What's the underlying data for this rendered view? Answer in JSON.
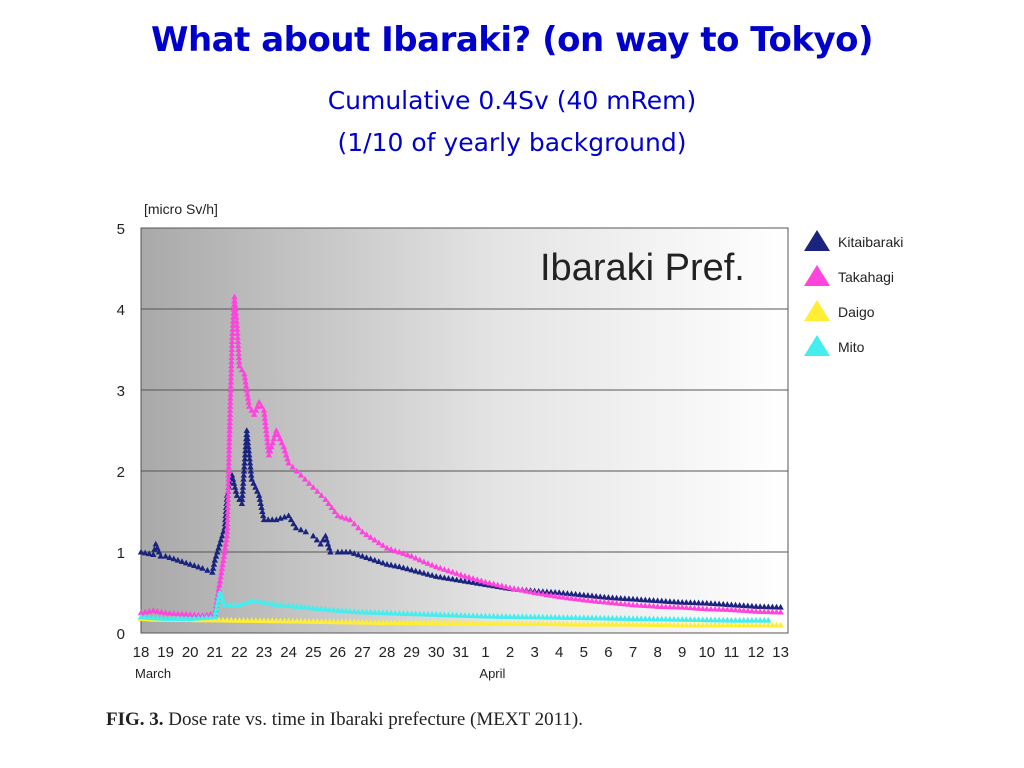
{
  "slide": {
    "title": "What about Ibaraki?  (on way to Tokyo)",
    "subtitle_1": "Cumulative 0.4Sv (40 mRem)",
    "subtitle_2": "(1/10 of yearly background)"
  },
  "figure": {
    "caption_label": "FIG. 3.",
    "caption_text": " Dose rate vs. time in Ibaraki prefecture (MEXT 2011)."
  },
  "chart_data": {
    "type": "scatter",
    "title": "Ibaraki Pref.",
    "ylabel": "[micro Sv/h]",
    "ylim": [
      0,
      5
    ],
    "yticks": [
      0,
      1,
      2,
      3,
      4,
      5
    ],
    "x_tick_labels": [
      "18",
      "19",
      "20",
      "21",
      "22",
      "23",
      "24",
      "25",
      "26",
      "27",
      "28",
      "29",
      "30",
      "31",
      "1",
      "2",
      "3",
      "4",
      "5",
      "6",
      "7",
      "8",
      "9",
      "10",
      "11",
      "12",
      "13"
    ],
    "x_tick_days": [
      18,
      19,
      20,
      21,
      22,
      23,
      24,
      25,
      26,
      27,
      28,
      29,
      30,
      31,
      32,
      33,
      34,
      35,
      36,
      37,
      38,
      39,
      40,
      41,
      42,
      43,
      44
    ],
    "x_month_labels": [
      {
        "label": "March",
        "day": 18
      },
      {
        "label": "April",
        "day": 32
      }
    ],
    "xlim": [
      18,
      44.3
    ],
    "grid": "horizontal",
    "legend_position": "right",
    "series": [
      {
        "name": "Kitaibaraki",
        "color": "#1a237e",
        "points": [
          [
            18,
            1.0
          ],
          [
            18.5,
            0.97
          ],
          [
            18.6,
            1.1
          ],
          [
            18.8,
            0.95
          ],
          [
            19,
            0.95
          ],
          [
            19.5,
            0.9
          ],
          [
            20,
            0.85
          ],
          [
            20.5,
            0.8
          ],
          [
            20.9,
            0.75
          ],
          [
            21,
            0.9
          ],
          [
            21.2,
            1.1
          ],
          [
            21.4,
            1.3
          ],
          [
            21.5,
            1.7
          ],
          [
            21.7,
            1.95
          ],
          [
            21.9,
            1.7
          ],
          [
            22.1,
            1.6
          ],
          [
            22.3,
            2.5
          ],
          [
            22.5,
            1.9
          ],
          [
            22.8,
            1.7
          ],
          [
            23,
            1.4
          ],
          [
            23.5,
            1.4
          ],
          [
            24,
            1.45
          ],
          [
            24.3,
            1.3
          ],
          [
            24.7,
            1.25
          ],
          [
            25,
            1.2
          ],
          [
            25.3,
            1.1
          ],
          [
            25.5,
            1.2
          ],
          [
            25.7,
            1.0
          ],
          [
            26,
            1.0
          ],
          [
            26.5,
            1.0
          ],
          [
            27,
            0.95
          ],
          [
            27.5,
            0.9
          ],
          [
            28,
            0.85
          ],
          [
            28.5,
            0.82
          ],
          [
            29,
            0.78
          ],
          [
            29.5,
            0.74
          ],
          [
            30,
            0.7
          ],
          [
            31,
            0.65
          ],
          [
            32,
            0.6
          ],
          [
            33,
            0.55
          ],
          [
            34,
            0.52
          ],
          [
            35,
            0.5
          ],
          [
            36,
            0.47
          ],
          [
            37,
            0.44
          ],
          [
            38,
            0.42
          ],
          [
            39,
            0.4
          ],
          [
            40,
            0.38
          ],
          [
            41,
            0.37
          ],
          [
            42,
            0.35
          ],
          [
            43,
            0.33
          ],
          [
            44,
            0.32
          ]
        ]
      },
      {
        "name": "Takahagi",
        "color": "#ff44dd",
        "points": [
          [
            18,
            0.25
          ],
          [
            18.5,
            0.28
          ],
          [
            19,
            0.25
          ],
          [
            19.5,
            0.24
          ],
          [
            20,
            0.23
          ],
          [
            20.5,
            0.22
          ],
          [
            21,
            0.24
          ],
          [
            21.5,
            1.2
          ],
          [
            21.6,
            2.5
          ],
          [
            21.7,
            3.6
          ],
          [
            21.8,
            4.15
          ],
          [
            21.9,
            3.8
          ],
          [
            22,
            3.3
          ],
          [
            22.2,
            3.2
          ],
          [
            22.4,
            2.8
          ],
          [
            22.6,
            2.7
          ],
          [
            22.8,
            2.85
          ],
          [
            23,
            2.75
          ],
          [
            23.2,
            2.2
          ],
          [
            23.5,
            2.5
          ],
          [
            23.8,
            2.3
          ],
          [
            24,
            2.1
          ],
          [
            24.5,
            1.95
          ],
          [
            25,
            1.8
          ],
          [
            25.5,
            1.65
          ],
          [
            26,
            1.45
          ],
          [
            26.5,
            1.4
          ],
          [
            27,
            1.25
          ],
          [
            27.5,
            1.15
          ],
          [
            28,
            1.05
          ],
          [
            28.5,
            1.0
          ],
          [
            29,
            0.95
          ],
          [
            29.5,
            0.88
          ],
          [
            30,
            0.82
          ],
          [
            31,
            0.72
          ],
          [
            32,
            0.63
          ],
          [
            33,
            0.56
          ],
          [
            34,
            0.5
          ],
          [
            35,
            0.45
          ],
          [
            36,
            0.41
          ],
          [
            37,
            0.38
          ],
          [
            38,
            0.35
          ],
          [
            39,
            0.33
          ],
          [
            40,
            0.32
          ],
          [
            41,
            0.3
          ],
          [
            42,
            0.29
          ],
          [
            43,
            0.27
          ],
          [
            44,
            0.26
          ]
        ]
      },
      {
        "name": "Daigo",
        "color": "#ffee33",
        "points": [
          [
            18,
            0.18
          ],
          [
            18.5,
            0.17
          ],
          [
            19,
            0.17
          ],
          [
            24,
            0.15
          ],
          [
            26,
            0.14
          ],
          [
            28,
            0.13
          ],
          [
            30,
            0.13
          ],
          [
            32,
            0.12
          ],
          [
            34,
            0.12
          ],
          [
            36,
            0.11
          ],
          [
            38,
            0.11
          ],
          [
            40,
            0.1
          ],
          [
            42,
            0.1
          ],
          [
            44,
            0.1
          ]
        ]
      },
      {
        "name": "Mito",
        "color": "#44eeee",
        "points": [
          [
            18,
            0.2
          ],
          [
            19,
            0.18
          ],
          [
            20,
            0.18
          ],
          [
            21,
            0.2
          ],
          [
            21.2,
            0.5
          ],
          [
            21.4,
            0.35
          ],
          [
            22,
            0.35
          ],
          [
            22.5,
            0.4
          ],
          [
            23,
            0.38
          ],
          [
            23.5,
            0.35
          ],
          [
            24,
            0.34
          ],
          [
            25,
            0.31
          ],
          [
            26,
            0.28
          ],
          [
            27,
            0.26
          ],
          [
            28,
            0.25
          ],
          [
            29,
            0.24
          ],
          [
            30,
            0.23
          ],
          [
            31,
            0.22
          ],
          [
            32,
            0.21
          ],
          [
            34,
            0.2
          ],
          [
            36,
            0.19
          ],
          [
            38,
            0.18
          ],
          [
            40,
            0.17
          ],
          [
            42,
            0.16
          ],
          [
            43.5,
            0.16
          ]
        ]
      }
    ]
  }
}
